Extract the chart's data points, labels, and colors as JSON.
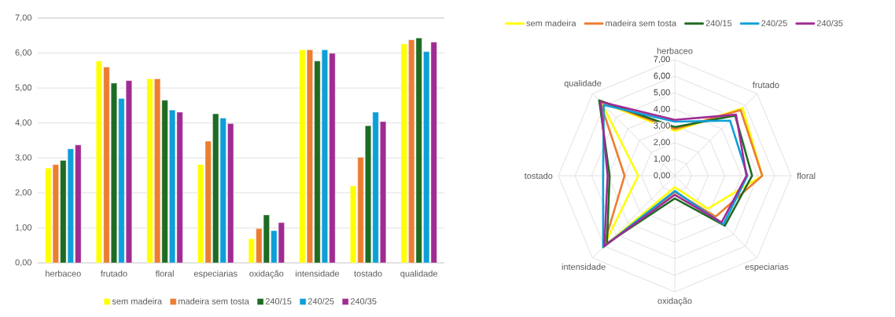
{
  "chart_data": [
    {
      "type": "bar",
      "categories": [
        "herbaceo",
        "frutado",
        "floral",
        "especiarias",
        "oxidação",
        "intensidade",
        "tostado",
        "qualidade"
      ],
      "series": [
        {
          "name": "sem madeira",
          "color": "#ffff00",
          "values": [
            2.71,
            5.77,
            5.26,
            2.81,
            0.69,
            6.09,
            2.2,
            6.26
          ]
        },
        {
          "name": "madeira sem tosta",
          "color": "#ed7d31",
          "values": [
            2.81,
            5.6,
            5.26,
            3.48,
            0.98,
            6.09,
            3.02,
            6.38
          ]
        },
        {
          "name": "240/15",
          "color": "#1e6b24",
          "values": [
            2.93,
            5.14,
            4.65,
            4.26,
            1.37,
            5.77,
            3.92,
            6.43
          ]
        },
        {
          "name": "240/25",
          "color": "#0e9fd8",
          "values": [
            3.26,
            4.7,
            4.37,
            4.14,
            0.92,
            6.09,
            4.31,
            6.04
          ]
        },
        {
          "name": "240/35",
          "color": "#a02b93",
          "values": [
            3.37,
            5.21,
            4.31,
            3.98,
            1.15,
            5.99,
            4.04,
            6.31
          ]
        }
      ],
      "ylim": [
        0,
        7
      ],
      "yticks": [
        {
          "value": 0,
          "label": "0,00"
        },
        {
          "value": 1,
          "label": "1,00"
        },
        {
          "value": 2,
          "label": "2,00"
        },
        {
          "value": 3,
          "label": "3,00"
        },
        {
          "value": 4,
          "label": "4,00"
        },
        {
          "value": 5,
          "label": "5,00"
        },
        {
          "value": 6,
          "label": "6,00"
        },
        {
          "value": 7,
          "label": "7,00"
        }
      ],
      "grid": "y",
      "legend": "bottom"
    },
    {
      "type": "radar",
      "categories": [
        "herbaceo",
        "frutado",
        "floral",
        "especiarias",
        "oxidação",
        "intensidade",
        "tostado",
        "qualidade"
      ],
      "series": [
        {
          "name": "sem madeira",
          "color": "#ffff00",
          "values": [
            2.71,
            5.77,
            5.26,
            2.81,
            0.69,
            6.09,
            2.2,
            6.26
          ]
        },
        {
          "name": "madeira sem tosta",
          "color": "#ed7d31",
          "values": [
            2.81,
            5.6,
            5.26,
            3.48,
            0.98,
            6.09,
            3.02,
            6.38
          ]
        },
        {
          "name": "240/15",
          "color": "#1e6b24",
          "values": [
            2.93,
            5.14,
            4.65,
            4.26,
            1.37,
            5.77,
            3.92,
            6.43
          ]
        },
        {
          "name": "240/25",
          "color": "#0e9fd8",
          "values": [
            3.26,
            4.7,
            4.37,
            4.14,
            0.92,
            6.09,
            4.31,
            6.04
          ]
        },
        {
          "name": "240/35",
          "color": "#a02b93",
          "values": [
            3.37,
            5.21,
            4.31,
            3.98,
            1.15,
            5.99,
            4.04,
            6.31
          ]
        }
      ],
      "ylim": [
        0,
        7
      ],
      "yticks": [
        {
          "value": 0,
          "label": "0,00"
        },
        {
          "value": 1,
          "label": "1,00"
        },
        {
          "value": 2,
          "label": "2,00"
        },
        {
          "value": 3,
          "label": "3,00"
        },
        {
          "value": 4,
          "label": "4,00"
        },
        {
          "value": 5,
          "label": "5,00"
        },
        {
          "value": 6,
          "label": "6,00"
        },
        {
          "value": 7,
          "label": "7,00"
        }
      ],
      "grid": true,
      "legend": "top"
    }
  ]
}
